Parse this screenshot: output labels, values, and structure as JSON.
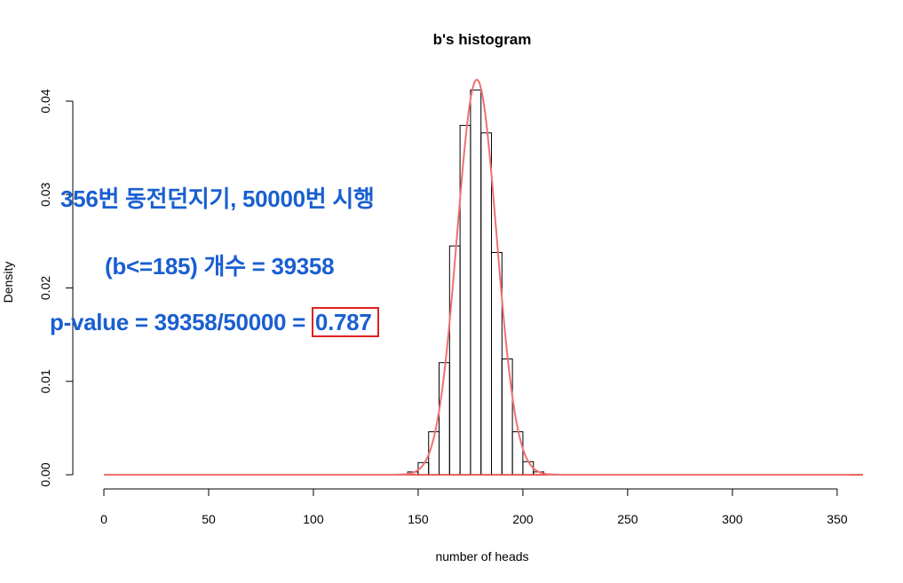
{
  "chart_data": {
    "type": "bar",
    "title": "b's histogram",
    "xlabel": "number of heads",
    "ylabel": "Density",
    "xlim": [
      0,
      356
    ],
    "ylim": [
      0,
      0.042
    ],
    "x_ticks": [
      0,
      50,
      100,
      150,
      200,
      250,
      300,
      350
    ],
    "y_ticks": [
      0.0,
      0.01,
      0.02,
      0.03,
      0.04
    ],
    "y_tick_labels": [
      "0.00",
      "0.01",
      "0.02",
      "0.03",
      "0.04"
    ],
    "bin_width": 5,
    "bins": [
      {
        "start": 140,
        "end": 145,
        "density": 4e-05
      },
      {
        "start": 145,
        "end": 150,
        "density": 0.0003
      },
      {
        "start": 150,
        "end": 155,
        "density": 0.0013
      },
      {
        "start": 155,
        "end": 160,
        "density": 0.0046
      },
      {
        "start": 160,
        "end": 165,
        "density": 0.012
      },
      {
        "start": 165,
        "end": 170,
        "density": 0.0245
      },
      {
        "start": 170,
        "end": 175,
        "density": 0.0374
      },
      {
        "start": 175,
        "end": 180,
        "density": 0.0412
      },
      {
        "start": 180,
        "end": 185,
        "density": 0.0366
      },
      {
        "start": 185,
        "end": 190,
        "density": 0.0238
      },
      {
        "start": 190,
        "end": 195,
        "density": 0.0124
      },
      {
        "start": 195,
        "end": 200,
        "density": 0.0046
      },
      {
        "start": 200,
        "end": 205,
        "density": 0.0014
      },
      {
        "start": 205,
        "end": 210,
        "density": 0.0003
      },
      {
        "start": 210,
        "end": 215,
        "density": 4e-05
      }
    ],
    "density_curve": {
      "type": "normal",
      "mean": 178,
      "sd": 9.43,
      "color": "#f07070"
    },
    "baseline_color": "#e03020",
    "grid": false
  },
  "annotations": {
    "line1": "356번 동전던지기, 50000번 시행",
    "line2": "(b<=185) 개수 = 39358",
    "line3_prefix": "p-value = 39358/50000 = ",
    "line3_value": "0.787",
    "text_color": "#1a5fd0",
    "box_color": "#e02020"
  }
}
